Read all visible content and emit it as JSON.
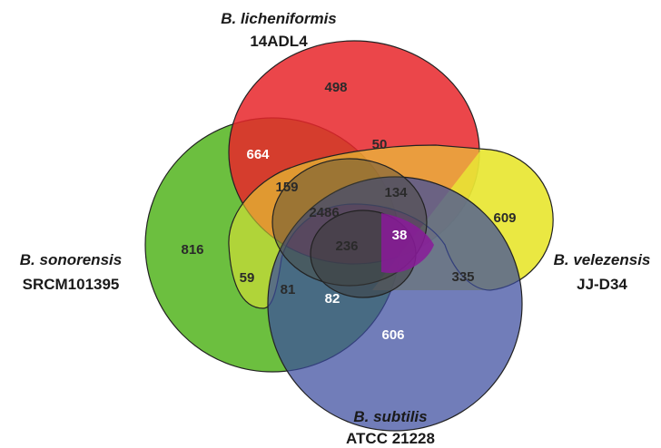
{
  "sets": [
    {
      "name": "B. licheniformis",
      "strain": "14ADL4",
      "color": "#e8262a"
    },
    {
      "name": "B. sonorensis",
      "strain": "SRCM101395",
      "color": "#6cbf3f"
    },
    {
      "name": "B. velezensis",
      "strain": "JJ-D34",
      "color": "#e9e635"
    },
    {
      "name": "B. subtilis",
      "strain": "ATCC 21228",
      "color": "#3a4b9e"
    }
  ],
  "regions": {
    "lich_only": "498",
    "lich_son": "664",
    "lich_vel": "50",
    "lich_son_vel": "159",
    "lich_vel_sub": "134",
    "all_four": "2486",
    "son_vel_sub": "236",
    "lich_sub": "38",
    "vel_only": "609",
    "son_only": "816",
    "son_vel": "59",
    "son_vel_sub_low": "81",
    "son_sub": "82",
    "vel_sub": "335",
    "sub_only": "606"
  }
}
